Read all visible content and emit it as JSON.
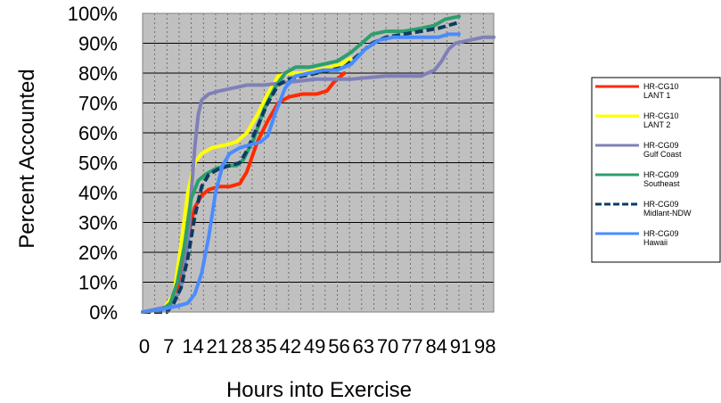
{
  "chart_data": {
    "type": "line",
    "title": "",
    "xlabel": "Hours into Exercise",
    "ylabel": "Percent Accounted",
    "xlim": [
      0,
      101
    ],
    "ylim": [
      0,
      100
    ],
    "x_ticks": [
      0,
      7,
      14,
      21,
      28,
      35,
      42,
      49,
      56,
      63,
      70,
      77,
      84,
      91,
      98
    ],
    "y_ticks": [
      "0%",
      "10%",
      "20%",
      "30%",
      "40%",
      "50%",
      "60%",
      "70%",
      "80%",
      "90%",
      "100%"
    ],
    "grid": true,
    "plot_background": "#c0c0c0",
    "legend_position": "right",
    "series": [
      {
        "name": "HR-CG10 LANT 1",
        "legend_lines": [
          "HR-CG10",
          "LANT 1"
        ],
        "color": "#ff2a00",
        "dash": "solid",
        "points": [
          [
            0,
            0
          ],
          [
            6,
            1
          ],
          [
            9,
            4
          ],
          [
            11,
            12
          ],
          [
            13,
            25
          ],
          [
            15,
            35
          ],
          [
            17,
            39
          ],
          [
            19,
            41
          ],
          [
            22,
            42
          ],
          [
            25,
            42
          ],
          [
            28,
            43
          ],
          [
            30,
            47
          ],
          [
            33,
            57
          ],
          [
            36,
            64
          ],
          [
            39,
            70
          ],
          [
            42,
            72
          ],
          [
            46,
            73
          ],
          [
            50,
            73
          ],
          [
            53,
            74
          ],
          [
            55,
            77
          ],
          [
            58,
            80
          ]
        ]
      },
      {
        "name": "HR-CG10 LANT 2",
        "legend_lines": [
          "HR-CG10",
          "LANT 2"
        ],
        "color": "#ffff00",
        "dash": "solid",
        "points": [
          [
            0,
            0
          ],
          [
            6,
            1
          ],
          [
            9,
            6
          ],
          [
            11,
            22
          ],
          [
            13,
            40
          ],
          [
            15,
            50
          ],
          [
            17,
            53
          ],
          [
            20,
            55
          ],
          [
            24,
            56
          ],
          [
            27,
            57
          ],
          [
            30,
            60
          ],
          [
            33,
            66
          ],
          [
            36,
            73
          ],
          [
            39,
            79
          ],
          [
            42,
            80
          ],
          [
            46,
            80
          ],
          [
            50,
            81
          ],
          [
            54,
            82
          ],
          [
            57,
            83
          ],
          [
            60,
            85
          ]
        ]
      },
      {
        "name": "HR-CG09 Gulf Coast",
        "legend_lines": [
          "HR-CG09",
          "Gulf Coast"
        ],
        "color": "#8080b8",
        "dash": "solid",
        "points": [
          [
            0,
            0
          ],
          [
            8,
            2
          ],
          [
            11,
            8
          ],
          [
            13,
            22
          ],
          [
            14,
            40
          ],
          [
            15,
            55
          ],
          [
            16,
            66
          ],
          [
            17,
            71
          ],
          [
            19,
            73
          ],
          [
            22,
            74
          ],
          [
            26,
            75
          ],
          [
            30,
            76
          ],
          [
            35,
            76
          ],
          [
            42,
            77
          ],
          [
            50,
            78
          ],
          [
            60,
            78
          ],
          [
            70,
            79
          ],
          [
            80,
            79
          ],
          [
            84,
            81
          ],
          [
            86,
            84
          ],
          [
            88,
            88
          ],
          [
            90,
            90
          ],
          [
            94,
            91
          ],
          [
            98,
            92
          ],
          [
            101,
            92
          ]
        ]
      },
      {
        "name": "HR-CG09 Southeast",
        "legend_lines": [
          "HR-CG09",
          "Southeast"
        ],
        "color": "#2e9e6e",
        "dash": "solid",
        "points": [
          [
            0,
            0
          ],
          [
            6,
            1
          ],
          [
            8,
            3
          ],
          [
            10,
            10
          ],
          [
            12,
            22
          ],
          [
            14,
            38
          ],
          [
            16,
            44
          ],
          [
            18,
            46
          ],
          [
            21,
            48
          ],
          [
            24,
            49
          ],
          [
            27,
            49
          ],
          [
            29,
            51
          ],
          [
            32,
            58
          ],
          [
            35,
            68
          ],
          [
            38,
            75
          ],
          [
            41,
            80
          ],
          [
            44,
            82
          ],
          [
            48,
            82
          ],
          [
            52,
            83
          ],
          [
            56,
            84
          ],
          [
            60,
            87
          ],
          [
            63,
            90
          ],
          [
            66,
            93
          ],
          [
            70,
            94
          ],
          [
            75,
            94
          ],
          [
            80,
            95
          ],
          [
            84,
            96
          ],
          [
            87,
            98
          ],
          [
            91,
            99
          ]
        ]
      },
      {
        "name": "HR-CG09 Midlant-NDW",
        "legend_lines": [
          "HR-CG09",
          "Midlant-NDW"
        ],
        "color": "#0a3c64",
        "dash": "dashed",
        "points": [
          [
            0,
            0
          ],
          [
            7,
            0
          ],
          [
            9,
            3
          ],
          [
            11,
            8
          ],
          [
            13,
            18
          ],
          [
            15,
            32
          ],
          [
            17,
            42
          ],
          [
            19,
            46
          ],
          [
            22,
            48
          ],
          [
            25,
            49
          ],
          [
            28,
            50
          ],
          [
            30,
            54
          ],
          [
            33,
            62
          ],
          [
            36,
            70
          ],
          [
            39,
            76
          ],
          [
            42,
            78
          ],
          [
            46,
            79
          ],
          [
            50,
            80
          ],
          [
            54,
            81
          ],
          [
            58,
            82
          ],
          [
            62,
            86
          ],
          [
            66,
            90
          ],
          [
            70,
            92
          ],
          [
            75,
            93
          ],
          [
            80,
            94
          ],
          [
            85,
            95
          ],
          [
            88,
            96
          ],
          [
            91,
            97
          ]
        ]
      },
      {
        "name": "HR-CG09 Hawaii",
        "legend_lines": [
          "HR-CG09",
          "Hawaii"
        ],
        "color": "#4a8cff",
        "dash": "solid",
        "points": [
          [
            0,
            0
          ],
          [
            6,
            1
          ],
          [
            10,
            2
          ],
          [
            13,
            3
          ],
          [
            15,
            6
          ],
          [
            17,
            13
          ],
          [
            19,
            25
          ],
          [
            21,
            40
          ],
          [
            23,
            49
          ],
          [
            25,
            53
          ],
          [
            28,
            55
          ],
          [
            31,
            56
          ],
          [
            34,
            57
          ],
          [
            36,
            59
          ],
          [
            38,
            66
          ],
          [
            41,
            75
          ],
          [
            44,
            79
          ],
          [
            48,
            80
          ],
          [
            52,
            81
          ],
          [
            56,
            81
          ],
          [
            60,
            83
          ],
          [
            64,
            88
          ],
          [
            68,
            91
          ],
          [
            72,
            92
          ],
          [
            76,
            92
          ],
          [
            80,
            92
          ],
          [
            85,
            92
          ],
          [
            88,
            93
          ],
          [
            91,
            93
          ]
        ]
      }
    ]
  }
}
